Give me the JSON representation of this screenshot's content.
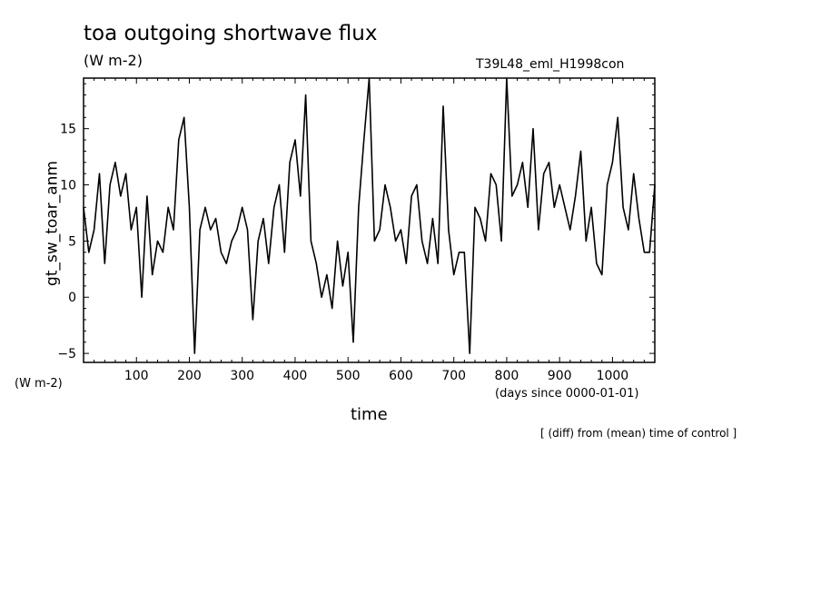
{
  "chart_data": {
    "type": "line",
    "title": "toa outgoing shortwave flux",
    "units": "(W m-2)",
    "run_label": "T39L48_eml_H1998con",
    "ylabel": "gt_sw_toar_anm",
    "y_units": "(W m-2)",
    "xlabel": "time",
    "x_units": "(days since 0000-01-01)",
    "note": "[ (diff) from (mean) time of control ]",
    "xlim": [
      0,
      1080
    ],
    "ylim": [
      -5.8,
      19.5
    ],
    "x_ticks": [
      100,
      200,
      300,
      400,
      500,
      600,
      700,
      800,
      900,
      1000
    ],
    "y_ticks": [
      -5,
      0,
      5,
      10,
      15
    ],
    "grid": false,
    "series": [
      {
        "color": "#000000",
        "x": [
          0,
          10,
          20,
          30,
          40,
          50,
          60,
          70,
          80,
          90,
          100,
          110,
          120,
          130,
          140,
          150,
          160,
          170,
          180,
          190,
          200,
          210,
          220,
          230,
          240,
          250,
          260,
          270,
          280,
          290,
          300,
          310,
          320,
          330,
          340,
          350,
          360,
          370,
          380,
          390,
          400,
          410,
          420,
          430,
          440,
          450,
          460,
          470,
          480,
          490,
          500,
          510,
          520,
          530,
          540,
          550,
          560,
          570,
          580,
          590,
          600,
          610,
          620,
          630,
          640,
          650,
          660,
          670,
          680,
          690,
          700,
          710,
          720,
          730,
          740,
          750,
          760,
          770,
          780,
          790,
          800,
          810,
          820,
          830,
          840,
          850,
          860,
          870,
          880,
          890,
          900,
          910,
          920,
          930,
          940,
          950,
          960,
          970,
          980,
          990,
          1000,
          1010,
          1020,
          1030,
          1040,
          1050,
          1060,
          1070,
          1080
        ],
        "y": [
          8,
          4,
          6,
          11,
          3,
          10,
          12,
          9,
          11,
          6,
          8,
          0,
          9,
          2,
          5,
          4,
          8,
          6,
          14,
          16,
          8,
          -5,
          6,
          8,
          6,
          7,
          4,
          3,
          5,
          6,
          8,
          6,
          -2,
          5,
          7,
          3,
          8,
          10,
          4,
          12,
          14,
          9,
          18,
          5,
          3,
          0,
          2,
          -1,
          5,
          1,
          4,
          -4,
          8,
          14,
          20,
          5,
          6,
          10,
          8,
          5,
          6,
          3,
          9,
          10,
          5,
          3,
          7,
          3,
          17,
          6,
          2,
          4,
          4,
          -5,
          8,
          7,
          5,
          11,
          10,
          5,
          20,
          9,
          10,
          12,
          8,
          15,
          6,
          11,
          12,
          8,
          10,
          8,
          6,
          9,
          13,
          5,
          8,
          3,
          2,
          10,
          12,
          16,
          8,
          6,
          11,
          7,
          4,
          4,
          10
        ]
      }
    ]
  }
}
